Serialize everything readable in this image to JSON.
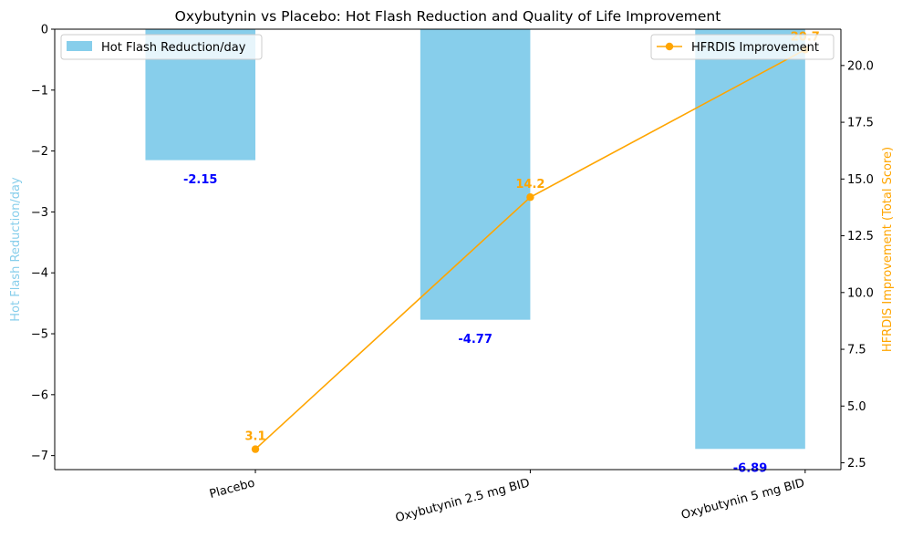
{
  "chart_data": {
    "type": "bar",
    "title": "Oxybutynin vs Placebo: Hot Flash Reduction and Quality of Life Improvement",
    "categories": [
      "Placebo",
      "Oxybutynin 2.5 mg BID",
      "Oxybutynin 5 mg BID"
    ],
    "ylabel_left": "Hot Flash Reduction/day",
    "ylabel_right": "HFRDIS Improvement (Total Score)",
    "ylim_left": [
      -7.23,
      0
    ],
    "ylim_right": [
      2.2,
      21.6
    ],
    "yticks_left": [
      "0",
      "−1",
      "−2",
      "−3",
      "−4",
      "−5",
      "−6",
      "−7"
    ],
    "yticks_right": [
      "2.5",
      "5.0",
      "7.5",
      "10.0",
      "12.5",
      "15.0",
      "17.5",
      "20.0"
    ],
    "series": [
      {
        "name": "Hot Flash Reduction/day",
        "kind": "bar",
        "axis": "left",
        "values": [
          -2.15,
          -4.77,
          -6.89
        ],
        "labels": [
          "-2.15",
          "-4.77",
          "-6.89"
        ],
        "color": "#87CEEB",
        "label_color": "#0000FF"
      },
      {
        "name": "HFRDIS Improvement",
        "kind": "line",
        "axis": "right",
        "values": [
          3.1,
          14.2,
          20.7
        ],
        "labels": [
          "3.1",
          "14.2",
          "20.7"
        ],
        "color": "#FFA500"
      }
    ],
    "legend_left_position": "upper-left",
    "legend_right_position": "upper-right",
    "grid": false
  }
}
